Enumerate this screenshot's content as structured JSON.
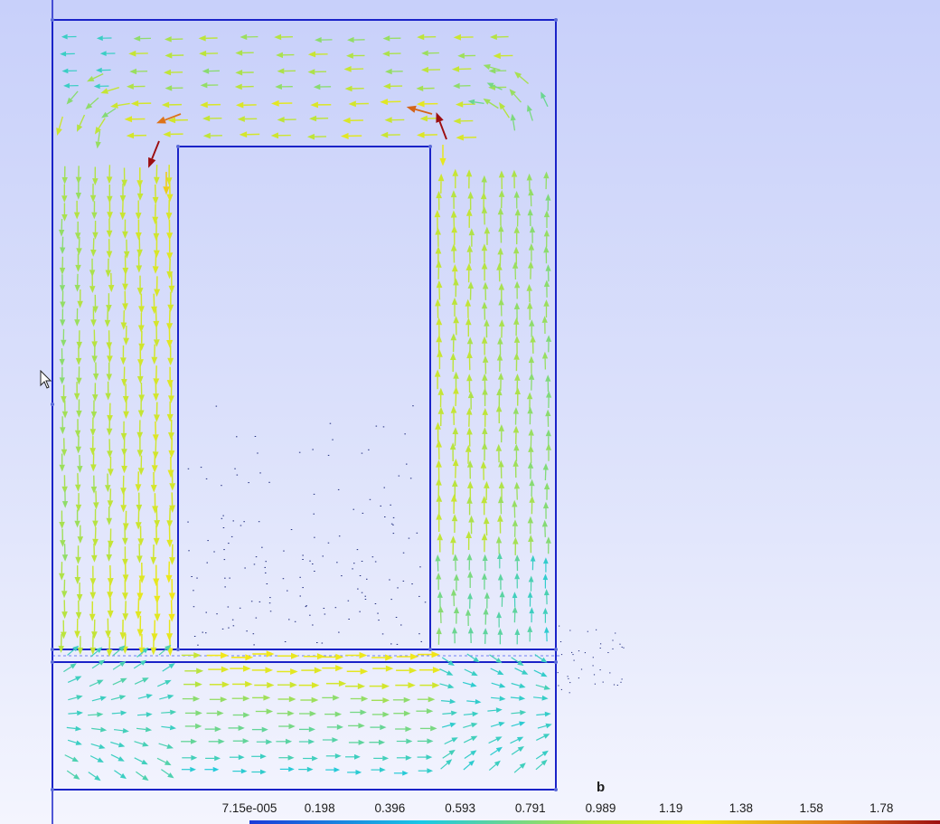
{
  "colorbar": {
    "title": "b",
    "tick_labels": [
      "7.15e-005",
      "0.198",
      "0.396",
      "0.593",
      "0.791",
      "0.989",
      "1.19",
      "1.38",
      "1.58",
      "1.78"
    ],
    "min": 7.15e-05,
    "max": 1.78,
    "colors": [
      "#1a3ad8",
      "#19c8e6",
      "#bde43a",
      "#f2e818",
      "#e27a1a",
      "#9c0e10"
    ]
  },
  "viewport": {
    "background_top": "#c8d0fa",
    "background_bottom": "#f4f5fe",
    "outline_color": "#1a23c8",
    "grid_color": "#3a46e8"
  }
}
